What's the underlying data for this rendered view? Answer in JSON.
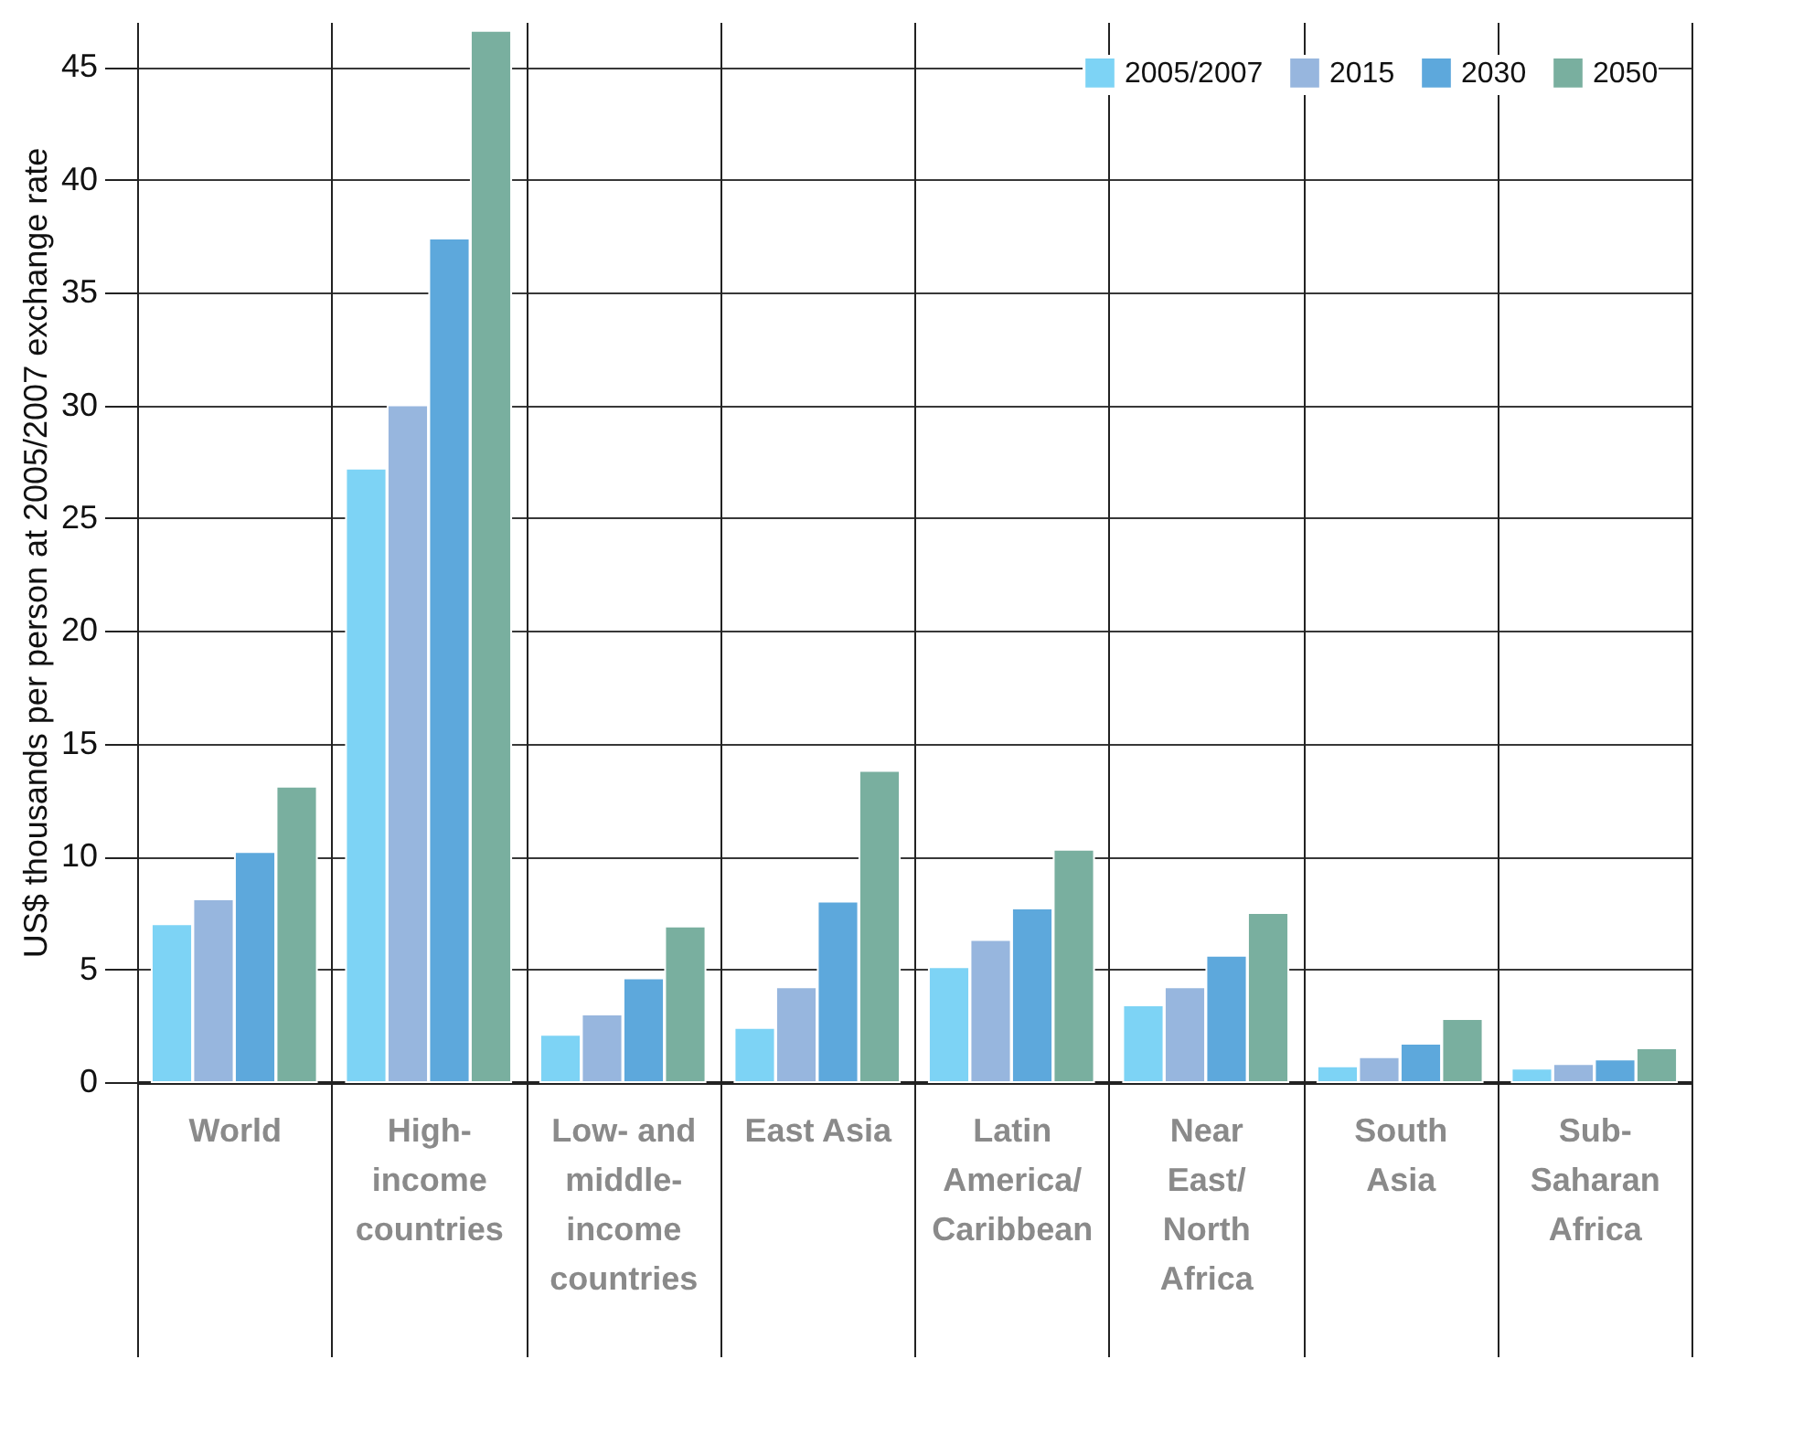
{
  "chart_data": {
    "type": "bar",
    "ylabel": "US$ thousands per person at 2005/2007 exchange rate",
    "categories": [
      "World",
      "High-income countries",
      "Low- and middle-income countries",
      "East Asia",
      "Latin America/Caribbean",
      "Near East/North Africa",
      "South Asia",
      "Sub-Saharan Africa"
    ],
    "series": [
      {
        "name": "2005/2007",
        "color": "#7dd3f5",
        "values": [
          7.0,
          27.2,
          2.1,
          2.4,
          5.1,
          3.4,
          0.7,
          0.6
        ]
      },
      {
        "name": "2015",
        "color": "#97b6de",
        "values": [
          8.1,
          30.0,
          3.0,
          4.2,
          6.3,
          4.2,
          1.1,
          0.8
        ]
      },
      {
        "name": "2030",
        "color": "#5da8dc",
        "values": [
          10.2,
          37.4,
          4.6,
          8.0,
          7.7,
          5.6,
          1.7,
          1.0
        ]
      },
      {
        "name": "2050",
        "color": "#79af9f",
        "values": [
          13.1,
          46.6,
          6.9,
          13.8,
          10.3,
          7.5,
          2.8,
          1.5
        ]
      }
    ],
    "ylim": [
      0,
      47
    ],
    "yticks": [
      0,
      5,
      10,
      15,
      20,
      25,
      30,
      35,
      40,
      45
    ],
    "grid": true,
    "legend": "top right"
  }
}
